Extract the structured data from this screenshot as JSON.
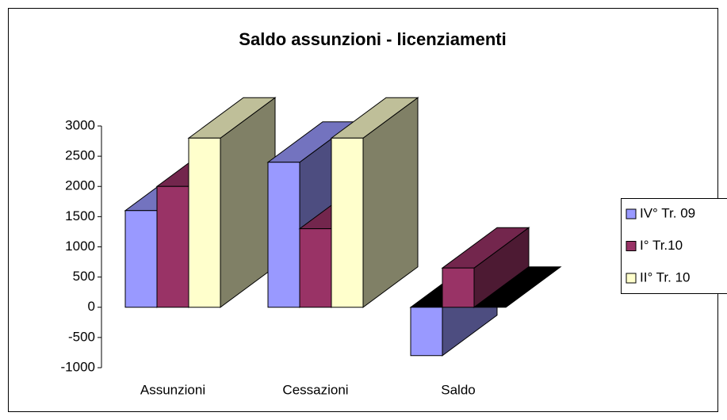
{
  "chart_data": {
    "type": "bar3d",
    "title": "Saldo assunzioni -  licenziamenti",
    "categories": [
      "Assunzioni",
      "Cessazioni",
      "Saldo"
    ],
    "series": [
      {
        "name": "IV° Tr. 09",
        "color": "#9999ff",
        "values": [
          1600,
          2400,
          -800
        ]
      },
      {
        "name": "I° Tr.10",
        "color": "#993366",
        "values": [
          2000,
          1300,
          650
        ]
      },
      {
        "name": "II° Tr. 10",
        "color": "#ffffcc",
        "values": [
          2800,
          2800,
          0
        ]
      }
    ],
    "ylim": [
      -1000,
      3000
    ],
    "yticks": [
      -1000,
      -500,
      0,
      500,
      1000,
      1500,
      2000,
      2500,
      3000
    ],
    "legend": "right"
  }
}
